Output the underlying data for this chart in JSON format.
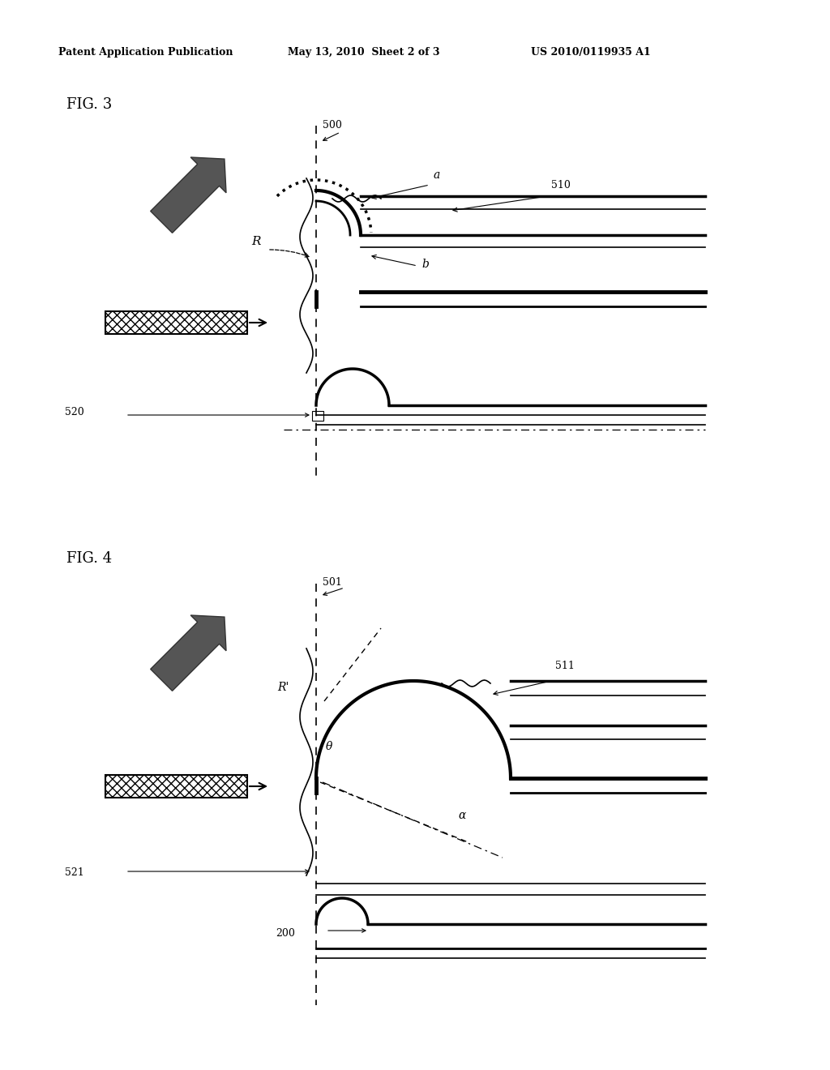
{
  "bg_color": "#ffffff",
  "header_text": "Patent Application Publication",
  "header_date": "May 13, 2010  Sheet 2 of 3",
  "header_patent": "US 2010/0119935 A1",
  "fig3_label": "FIG. 3",
  "fig4_label": "FIG. 4",
  "label_500": "500",
  "label_510": "510",
  "label_520": "520",
  "label_R": "R",
  "label_a": "a",
  "label_b": "b",
  "label_501": "501",
  "label_511": "511",
  "label_521": "521",
  "label_200": "200",
  "label_Rprime": "R'",
  "label_theta": "θ",
  "label_alpha": "α"
}
